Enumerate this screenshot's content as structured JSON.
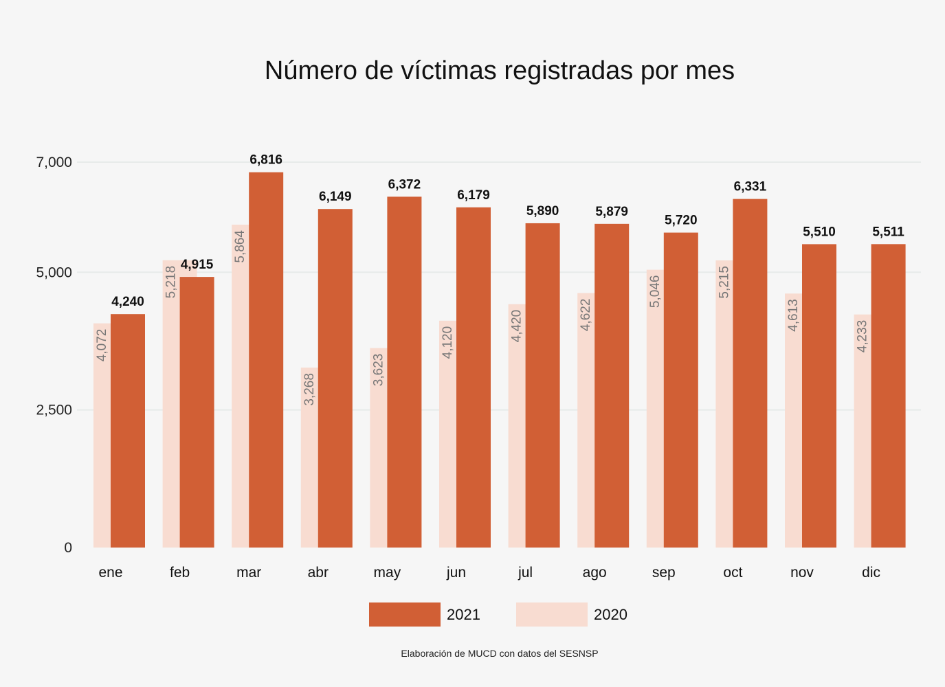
{
  "chart_data": {
    "type": "bar",
    "title": "Número de víctimas registradas por mes",
    "categories": [
      "ene",
      "feb",
      "mar",
      "abr",
      "may",
      "jun",
      "jul",
      "ago",
      "sep",
      "oct",
      "nov",
      "dic"
    ],
    "series": [
      {
        "name": "2021",
        "color": "#d15f35",
        "values": [
          4240,
          4915,
          6816,
          6149,
          6372,
          6179,
          5890,
          5879,
          5720,
          6331,
          5510,
          5511
        ],
        "labels": [
          "4,240",
          "4,915",
          "6,816",
          "6,149",
          "6,372",
          "6,179",
          "5,890",
          "5,879",
          "5,720",
          "6,331",
          "5,510",
          "5,511"
        ]
      },
      {
        "name": "2020",
        "color": "#f8dcd1",
        "values": [
          4072,
          5218,
          5864,
          3268,
          3623,
          4120,
          4420,
          4622,
          5046,
          5215,
          4613,
          4233
        ],
        "labels": [
          "4,072",
          "5,218",
          "5,864",
          "3,268",
          "3,623",
          "4,120",
          "4,420",
          "4,622",
          "5,046",
          "5,215",
          "4,613",
          "4,233"
        ]
      }
    ],
    "y_ticks": [
      0,
      2500,
      5000,
      7000
    ],
    "y_tick_labels": [
      "0",
      "2,500",
      "5,000",
      "7,000"
    ],
    "ylim": [
      0,
      7000
    ],
    "grid": true,
    "legend_position": "bottom-center",
    "xlabel": "",
    "ylabel": "",
    "source_note": "Elaboración de MUCD con datos del SESNSP"
  }
}
